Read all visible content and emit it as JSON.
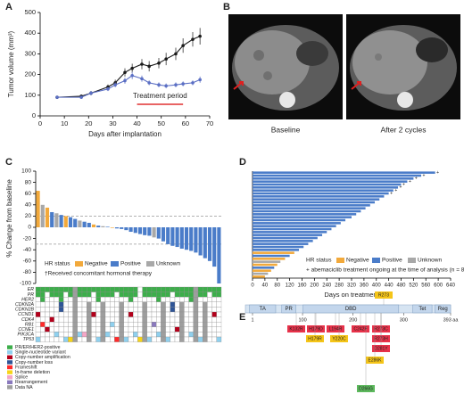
{
  "chart_data": [
    {
      "type": "line",
      "panel": "A",
      "xlabel": "Days after implantation",
      "ylabel": "Tumor volume (mm³)",
      "x": [
        7,
        17,
        21,
        28,
        31,
        35,
        38,
        42,
        45,
        49,
        52,
        56,
        59,
        63,
        66
      ],
      "series": [
        {
          "color": "#1a1a1a",
          "values": [
            90,
            95,
            110,
            140,
            160,
            210,
            230,
            250,
            240,
            255,
            275,
            300,
            340,
            370,
            385
          ],
          "errors": [
            8,
            8,
            10,
            12,
            15,
            20,
            22,
            25,
            25,
            25,
            30,
            30,
            35,
            35,
            40
          ]
        },
        {
          "color": "#5b6fc4",
          "values": [
            90,
            90,
            110,
            130,
            150,
            170,
            195,
            180,
            160,
            150,
            145,
            150,
            155,
            160,
            175
          ],
          "errors": [
            8,
            8,
            10,
            10,
            12,
            15,
            18,
            15,
            12,
            12,
            12,
            12,
            12,
            12,
            15
          ]
        }
      ],
      "xlim": [
        0,
        70
      ],
      "xticks": [
        0,
        10,
        20,
        30,
        40,
        50,
        60,
        70
      ],
      "ylim": [
        0,
        500
      ],
      "yticks": [
        0,
        100,
        200,
        300,
        400,
        500
      ],
      "annotation": {
        "text": "Treatment period",
        "start": 40,
        "end": 59,
        "color": "#e03030"
      }
    },
    {
      "type": "bar",
      "panel": "C",
      "ylabel": "% Change from baseline",
      "legend_title": "HR status",
      "note": "†Received concomitant hormonal therapy",
      "series": [
        {
          "name": "Negative",
          "color": "#f2a93b",
          "values": [
            65,
            null,
            35,
            null,
            null,
            null,
            20,
            null,
            null,
            null,
            null,
            null,
            5,
            null,
            null,
            null,
            -1,
            null,
            null,
            null,
            null,
            null,
            null,
            null,
            null,
            null,
            null,
            null,
            null,
            null,
            null,
            null,
            null,
            null,
            null,
            null,
            null,
            null,
            null,
            null
          ]
        },
        {
          "name": "Positive",
          "color": "#4a7cc9",
          "values": [
            null,
            null,
            null,
            27,
            null,
            22,
            null,
            18,
            15,
            null,
            10,
            8,
            null,
            3,
            null,
            1,
            null,
            -2,
            -3,
            -5,
            -8,
            -10,
            -12,
            -14,
            -15,
            null,
            -20,
            -25,
            -30,
            -33,
            -35,
            -38,
            -40,
            -42,
            -45,
            -50,
            -55,
            -60,
            -70,
            -100
          ]
        },
        {
          "name": "Unknown",
          "color": "#a8a8a8",
          "values": [
            null,
            40,
            null,
            null,
            25,
            null,
            null,
            null,
            null,
            12,
            null,
            null,
            null,
            null,
            2,
            null,
            null,
            null,
            null,
            null,
            null,
            null,
            null,
            null,
            null,
            -18,
            null,
            null,
            null,
            null,
            null,
            null,
            null,
            null,
            null,
            null,
            null,
            null,
            null,
            null
          ]
        }
      ],
      "reference_lines": [
        20,
        -30
      ],
      "ylim": [
        -100,
        100
      ],
      "yticks": [
        -100,
        -80,
        -60,
        -40,
        -20,
        0,
        20,
        40,
        60,
        80,
        100
      ]
    },
    {
      "type": "barh",
      "panel": "D",
      "xlabel": "Days on treatment",
      "legend_title": "HR status",
      "note": "+ abemaciclib treatment ongoing at the time of analysis (n = 8)",
      "ongoing_symbol": "+",
      "series": [
        {
          "name": "Negative",
          "color": "#f2a93b",
          "values": [
            null,
            null,
            null,
            null,
            null,
            null,
            null,
            null,
            null,
            null,
            null,
            null,
            null,
            null,
            null,
            null,
            null,
            null,
            null,
            null,
            null,
            null,
            null,
            null,
            null,
            null,
            null,
            135,
            null,
            105,
            null,
            80,
            null,
            60,
            null,
            40
          ]
        },
        {
          "name": "Positive",
          "color": "#4a7cc9",
          "values": [
            590,
            545,
            520,
            500,
            480,
            470,
            455,
            440,
            425,
            410,
            395,
            380,
            365,
            350,
            335,
            320,
            300,
            285,
            270,
            255,
            240,
            225,
            210,
            195,
            180,
            165,
            150,
            null,
            120,
            null,
            null,
            null,
            70,
            null,
            null,
            null
          ]
        },
        {
          "name": "Unknown",
          "color": "#a8a8a8",
          "values": [
            null,
            null,
            null,
            null,
            null,
            null,
            null,
            null,
            null,
            null,
            null,
            null,
            null,
            null,
            null,
            null,
            null,
            null,
            null,
            null,
            null,
            null,
            null,
            null,
            null,
            null,
            null,
            null,
            null,
            null,
            90,
            null,
            null,
            null,
            50,
            null
          ]
        }
      ],
      "ongoing": [
        true,
        true,
        true,
        true,
        true,
        true,
        true,
        true,
        false,
        false,
        false,
        false,
        false,
        false,
        false,
        false,
        false,
        false,
        false,
        false,
        false,
        false,
        false,
        false,
        false,
        false,
        false,
        false,
        false,
        false,
        false,
        false,
        false,
        false,
        false,
        false
      ],
      "xlim": [
        0,
        640
      ],
      "xticks": [
        0,
        40,
        80,
        120,
        160,
        200,
        240,
        280,
        320,
        360,
        400,
        440,
        480,
        520,
        560,
        600,
        640
      ]
    }
  ],
  "panel_b": {
    "panel": "B",
    "captions": [
      "Baseline",
      "After 2 cycles"
    ]
  },
  "heatmap": {
    "genes": [
      "ER",
      "PR",
      "HER2",
      "CDKN2A",
      "CDKN2B",
      "CCND1",
      "CDK4",
      "RB1",
      "CCNE1",
      "PIK3CA",
      "TP53"
    ],
    "legend": [
      {
        "label": "PR/ER/HER2-positive",
        "color": "#3cae4a"
      },
      {
        "label": "Single-nucleotide variant",
        "color": "#8fd0ee"
      },
      {
        "label": "Copy-number amplification",
        "color": "#b3001b"
      },
      {
        "label": "Copy-number loss",
        "color": "#2f5597"
      },
      {
        "label": "Frameshift",
        "color": "#ff2a2a"
      },
      {
        "label": "In-frame deletion",
        "color": "#f7d417"
      },
      {
        "label": "Splice",
        "color": "#f4a6c6"
      },
      {
        "label": "Rearrangement",
        "color": "#8a79bd"
      },
      {
        "label": "Data NA",
        "color": "#9e9e9e"
      }
    ],
    "cells": [
      [
        0,
        0,
        0,
        0,
        0,
        0,
        0,
        0,
        8,
        0,
        0,
        0,
        0,
        0,
        0,
        0,
        0,
        0,
        0,
        0,
        0,
        0,
        null,
        0,
        0,
        0,
        0,
        0,
        0,
        0,
        0,
        0,
        0,
        0,
        8,
        0,
        0,
        0,
        0,
        0
      ],
      [
        0,
        0,
        null,
        0,
        0,
        0,
        null,
        0,
        8,
        0,
        0,
        0,
        null,
        0,
        0,
        0,
        0,
        null,
        0,
        0,
        0,
        0,
        null,
        0,
        0,
        0,
        0,
        0,
        0,
        null,
        0,
        0,
        0,
        0,
        8,
        0,
        0,
        null,
        0,
        0
      ],
      [
        null,
        0,
        null,
        null,
        null,
        0,
        null,
        null,
        8,
        null,
        null,
        null,
        null,
        0,
        null,
        null,
        null,
        null,
        null,
        null,
        0,
        null,
        null,
        null,
        null,
        null,
        0,
        null,
        null,
        null,
        null,
        null,
        null,
        0,
        8,
        null,
        null,
        null,
        null,
        null
      ],
      [
        null,
        null,
        null,
        null,
        null,
        3,
        null,
        null,
        8,
        null,
        null,
        8,
        null,
        null,
        8,
        null,
        null,
        null,
        8,
        null,
        null,
        null,
        null,
        8,
        null,
        null,
        null,
        8,
        null,
        3,
        null,
        8,
        null,
        null,
        8,
        null,
        8,
        null,
        null,
        null
      ],
      [
        null,
        null,
        null,
        null,
        null,
        3,
        null,
        null,
        8,
        null,
        null,
        8,
        null,
        null,
        8,
        null,
        null,
        null,
        8,
        null,
        null,
        null,
        null,
        8,
        null,
        null,
        null,
        8,
        null,
        3,
        null,
        8,
        null,
        null,
        8,
        null,
        8,
        null,
        null,
        null
      ],
      [
        2,
        null,
        null,
        null,
        null,
        null,
        null,
        null,
        8,
        null,
        null,
        8,
        2,
        null,
        8,
        null,
        null,
        null,
        8,
        null,
        2,
        null,
        null,
        8,
        null,
        null,
        null,
        8,
        null,
        null,
        null,
        8,
        null,
        null,
        8,
        null,
        8,
        null,
        2,
        null
      ],
      [
        null,
        null,
        null,
        2,
        null,
        null,
        null,
        null,
        8,
        null,
        null,
        8,
        null,
        null,
        8,
        null,
        null,
        null,
        8,
        null,
        null,
        null,
        null,
        8,
        null,
        null,
        null,
        8,
        null,
        null,
        null,
        8,
        null,
        null,
        8,
        null,
        8,
        null,
        null,
        null
      ],
      [
        null,
        4,
        null,
        null,
        null,
        null,
        null,
        null,
        8,
        null,
        null,
        8,
        null,
        null,
        8,
        null,
        1,
        null,
        8,
        null,
        null,
        null,
        null,
        8,
        null,
        7,
        null,
        8,
        null,
        null,
        null,
        8,
        null,
        null,
        8,
        null,
        8,
        null,
        null,
        null
      ],
      [
        null,
        null,
        2,
        null,
        null,
        null,
        null,
        null,
        8,
        null,
        null,
        8,
        null,
        null,
        8,
        null,
        null,
        null,
        8,
        null,
        null,
        null,
        null,
        8,
        null,
        null,
        null,
        8,
        null,
        null,
        2,
        8,
        null,
        null,
        8,
        null,
        8,
        null,
        null,
        null
      ],
      [
        null,
        null,
        null,
        null,
        1,
        null,
        null,
        null,
        8,
        1,
        6,
        8,
        null,
        null,
        8,
        1,
        null,
        null,
        8,
        null,
        null,
        1,
        null,
        8,
        null,
        null,
        1,
        8,
        null,
        null,
        null,
        8,
        null,
        1,
        8,
        null,
        8,
        null,
        null,
        null
      ],
      [
        1,
        null,
        null,
        null,
        null,
        null,
        1,
        5,
        8,
        null,
        null,
        8,
        null,
        1,
        8,
        null,
        null,
        4,
        8,
        1,
        null,
        null,
        5,
        8,
        1,
        null,
        null,
        8,
        1,
        null,
        null,
        8,
        null,
        null,
        8,
        1,
        8,
        null,
        null,
        1
      ]
    ]
  },
  "protein": {
    "panel": "E",
    "domains": [
      "TA",
      "PR",
      "DBD",
      "Tet",
      "Reg"
    ],
    "ticks": [
      1,
      100,
      200,
      300,
      {
        "value": 393,
        "label": "393 aa"
      }
    ],
    "mutations": [
      {
        "label": "R273",
        "color": "#f5c518"
      },
      {
        "label": "K132R",
        "color": "#e8324a"
      },
      {
        "label": "H179D",
        "color": "#e8324a"
      },
      {
        "label": "L194R",
        "color": "#e8324a"
      },
      {
        "label": "C242F",
        "color": "#e8324a"
      },
      {
        "label": "R273C",
        "color": "#e8324a"
      },
      {
        "label": "H179R",
        "color": "#f5c518"
      },
      {
        "label": "Y220C",
        "color": "#f5c518"
      },
      {
        "label": "R273H",
        "color": "#e8324a"
      },
      {
        "label": "D281Y",
        "color": "#e8324a"
      },
      {
        "label": "E286K",
        "color": "#f5c518"
      },
      {
        "label": "D266G",
        "color": "#5cb85c"
      }
    ]
  }
}
